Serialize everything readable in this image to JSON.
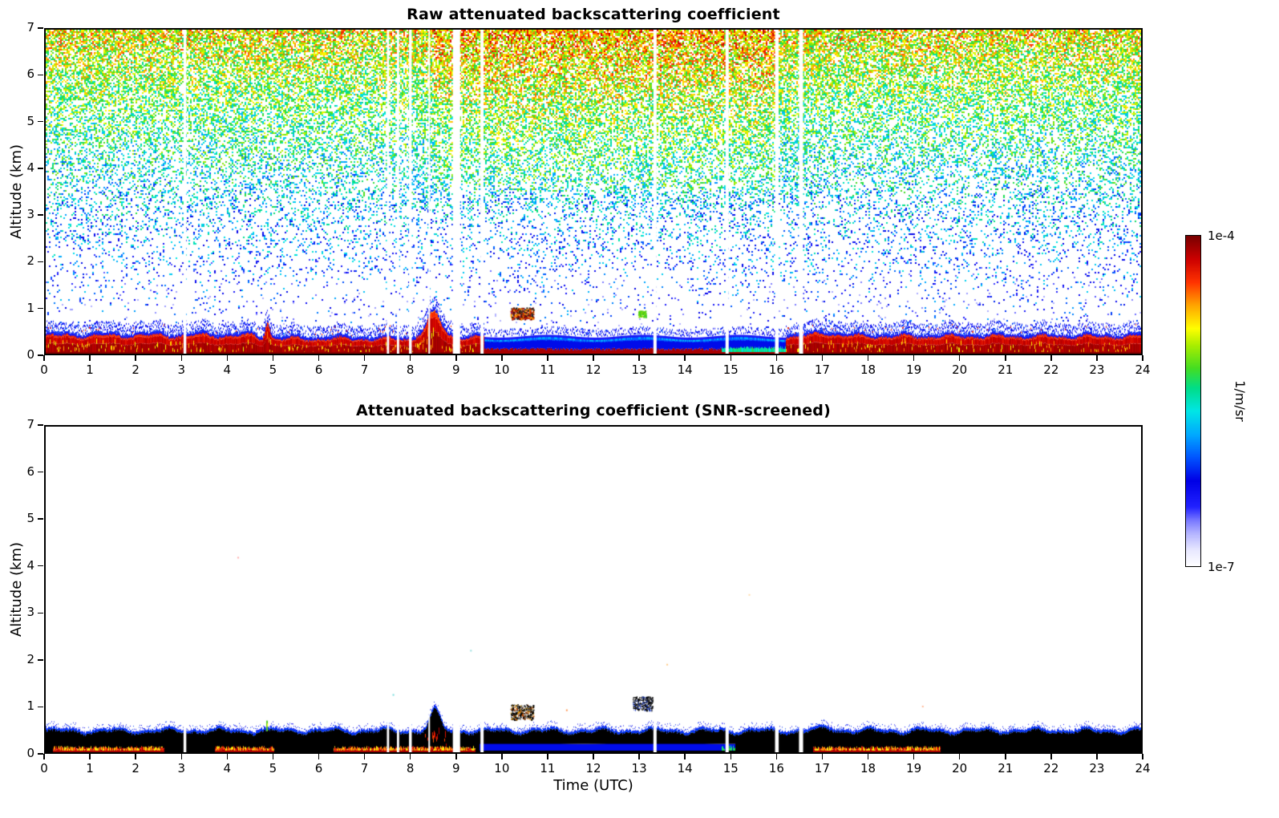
{
  "page": {
    "background": "#ffffff"
  },
  "seed": 42,
  "colormap": {
    "stops": [
      [
        0.0,
        "#ffffff"
      ],
      [
        0.05,
        "#e8e8ff"
      ],
      [
        0.1,
        "#b4b4ff"
      ],
      [
        0.14,
        "#7878ff"
      ],
      [
        0.18,
        "#2222ff"
      ],
      [
        0.26,
        "#0000e6"
      ],
      [
        0.33,
        "#0055ff"
      ],
      [
        0.4,
        "#00aaff"
      ],
      [
        0.47,
        "#00e6e6"
      ],
      [
        0.54,
        "#00dd88"
      ],
      [
        0.6,
        "#44dd22"
      ],
      [
        0.67,
        "#aaee00"
      ],
      [
        0.72,
        "#ffff00"
      ],
      [
        0.79,
        "#ffa500"
      ],
      [
        0.86,
        "#ff3300"
      ],
      [
        0.93,
        "#cc0000"
      ],
      [
        1.0,
        "#7a0000"
      ]
    ]
  },
  "colorbar": {
    "top_label": "1e-4",
    "bottom_label": "1e-7",
    "unit_label": "1/m/sr",
    "min": 1e-07,
    "max": 0.0001,
    "scale": "log"
  },
  "chart_data": [
    {
      "type": "heatmap",
      "title": "Raw attenuated backscattering coefficient",
      "xlabel": "",
      "ylabel": "Altitude (km)",
      "xlim": [
        0,
        24
      ],
      "ylim": [
        0,
        7
      ],
      "xticks": [
        0,
        1,
        2,
        3,
        4,
        5,
        6,
        7,
        8,
        9,
        10,
        11,
        12,
        13,
        14,
        15,
        16,
        17,
        18,
        19,
        20,
        21,
        22,
        23,
        24
      ],
      "yticks": [
        0,
        1,
        2,
        3,
        4,
        5,
        6,
        7
      ],
      "value_range": [
        "1e-7",
        "1e-4"
      ],
      "units": "1/m/sr",
      "noise": {
        "base_density": 0.018,
        "alt_density_gain": 0.72,
        "alt_density_exp": 1.7,
        "color_base": 0.17,
        "color_alt_gain": 0.55,
        "color_jitter": 0.34,
        "boost": {
          "t0": 8,
          "t1": 17,
          "frac_min": 0.45,
          "density": 0.08,
          "color": 0.06
        }
      },
      "surface_layer": {
        "red_top_base": 0.4,
        "spike": {
          "t": 4.85,
          "peak": 0.36,
          "sigma": 0.07
        },
        "cloud": {
          "t0": 8.1,
          "t1": 8.95,
          "center": 8.5,
          "sigma": 0.2,
          "peak": 0.5
        },
        "hump": {
          "center": 17.1,
          "sigma": 0.35,
          "peak": 0.06
        }
      },
      "blue_band": {
        "t0": 9.6,
        "t1": 16.2,
        "blue_top": 0.36,
        "red_top": 0.1,
        "cyan_from": 14.8
      },
      "features": [
        {
          "t0": 10.18,
          "t1": 10.68,
          "a0": 0.75,
          "a1": 1.0,
          "count": 240,
          "colors": [
            "#7a0000",
            "#cc2200",
            "#222222",
            "#ff9900"
          ]
        },
        {
          "t0": 12.98,
          "t1": 13.14,
          "a0": 0.8,
          "a1": 0.93,
          "count": 60,
          "colors": [
            "#44cc22",
            "#88dd00"
          ]
        }
      ],
      "gaps": [
        {
          "t": 3.05,
          "w": 0.06
        },
        {
          "t": 7.5,
          "w": 0.05
        },
        {
          "t": 7.72,
          "w": 0.05
        },
        {
          "t": 7.99,
          "w": 0.06
        },
        {
          "t": 8.4,
          "w": 0.03
        },
        {
          "t": 9.0,
          "w": 0.16
        },
        {
          "t": 9.56,
          "w": 0.07
        },
        {
          "t": 13.35,
          "w": 0.07
        },
        {
          "t": 14.93,
          "w": 0.07
        },
        {
          "t": 16.02,
          "w": 0.08
        },
        {
          "t": 16.55,
          "w": 0.09
        }
      ]
    },
    {
      "type": "heatmap",
      "title": "Attenuated backscattering coefficient (SNR-screened)",
      "xlabel": "Time (UTC)",
      "ylabel": "Altitude (km)",
      "xlim": [
        0,
        24
      ],
      "ylim": [
        0,
        7
      ],
      "xticks": [
        0,
        1,
        2,
        3,
        4,
        5,
        6,
        7,
        8,
        9,
        10,
        11,
        12,
        13,
        14,
        15,
        16,
        17,
        18,
        19,
        20,
        21,
        22,
        23,
        24
      ],
      "yticks": [
        0,
        1,
        2,
        3,
        4,
        5,
        6,
        7
      ],
      "value_range": [
        "1e-7",
        "1e-4"
      ],
      "units": "1/m/sr",
      "layer": {
        "black_top_base": 0.44,
        "cloud": {
          "t0": 8.2,
          "t1": 8.9,
          "center": 8.52,
          "sigma": 0.16,
          "peak": 0.44
        },
        "hump": {
          "center": 17.15,
          "sigma": 0.3,
          "peak": 0.05
        }
      },
      "red_strips": [
        [
          0.15,
          2.6
        ],
        [
          3.7,
          5.0
        ],
        [
          6.3,
          9.4
        ],
        [
          16.8,
          19.6
        ]
      ],
      "blue_band": {
        "t0": 9.5,
        "t1": 15.1,
        "top": 0.2
      },
      "cyan_patch": {
        "t0": 14.8,
        "t1": 16.3,
        "top": 0.15
      },
      "spike": {
        "t": 4.85,
        "top": 0.68,
        "color": "#55cc22"
      },
      "features": [
        {
          "t0": 10.18,
          "t1": 10.68,
          "a0": 0.7,
          "a1": 1.03,
          "count": 320,
          "colors": [
            "#000000",
            "#000000",
            "#000000",
            "#000000",
            "#b34700",
            "#e8a000"
          ]
        },
        {
          "t0": 12.86,
          "t1": 13.3,
          "a0": 0.9,
          "a1": 1.2,
          "count": 280,
          "colors": [
            "#000000",
            "#000000",
            "#000000",
            "#000000",
            "#2244cc"
          ]
        }
      ],
      "dots": [
        {
          "t": 4.2,
          "a": 4.2,
          "c": "#ffb0b0"
        },
        {
          "t": 7.6,
          "a": 1.25,
          "c": "#77dddd"
        },
        {
          "t": 9.3,
          "a": 2.2,
          "c": "#99e0e0"
        },
        {
          "t": 11.4,
          "a": 0.92,
          "c": "#ff9955"
        },
        {
          "t": 13.6,
          "a": 1.9,
          "c": "#ffcc88"
        },
        {
          "t": 15.4,
          "a": 3.4,
          "c": "#ffddaa"
        },
        {
          "t": 19.2,
          "a": 1.0,
          "c": "#ffbb99"
        }
      ],
      "gaps": [
        {
          "t": 3.05,
          "w": 0.06
        },
        {
          "t": 7.5,
          "w": 0.05
        },
        {
          "t": 7.72,
          "w": 0.05
        },
        {
          "t": 7.99,
          "w": 0.06
        },
        {
          "t": 8.4,
          "w": 0.03
        },
        {
          "t": 9.0,
          "w": 0.16
        },
        {
          "t": 9.56,
          "w": 0.07
        },
        {
          "t": 13.35,
          "w": 0.07
        },
        {
          "t": 14.93,
          "w": 0.07
        },
        {
          "t": 16.02,
          "w": 0.08
        },
        {
          "t": 16.55,
          "w": 0.09
        }
      ]
    }
  ]
}
